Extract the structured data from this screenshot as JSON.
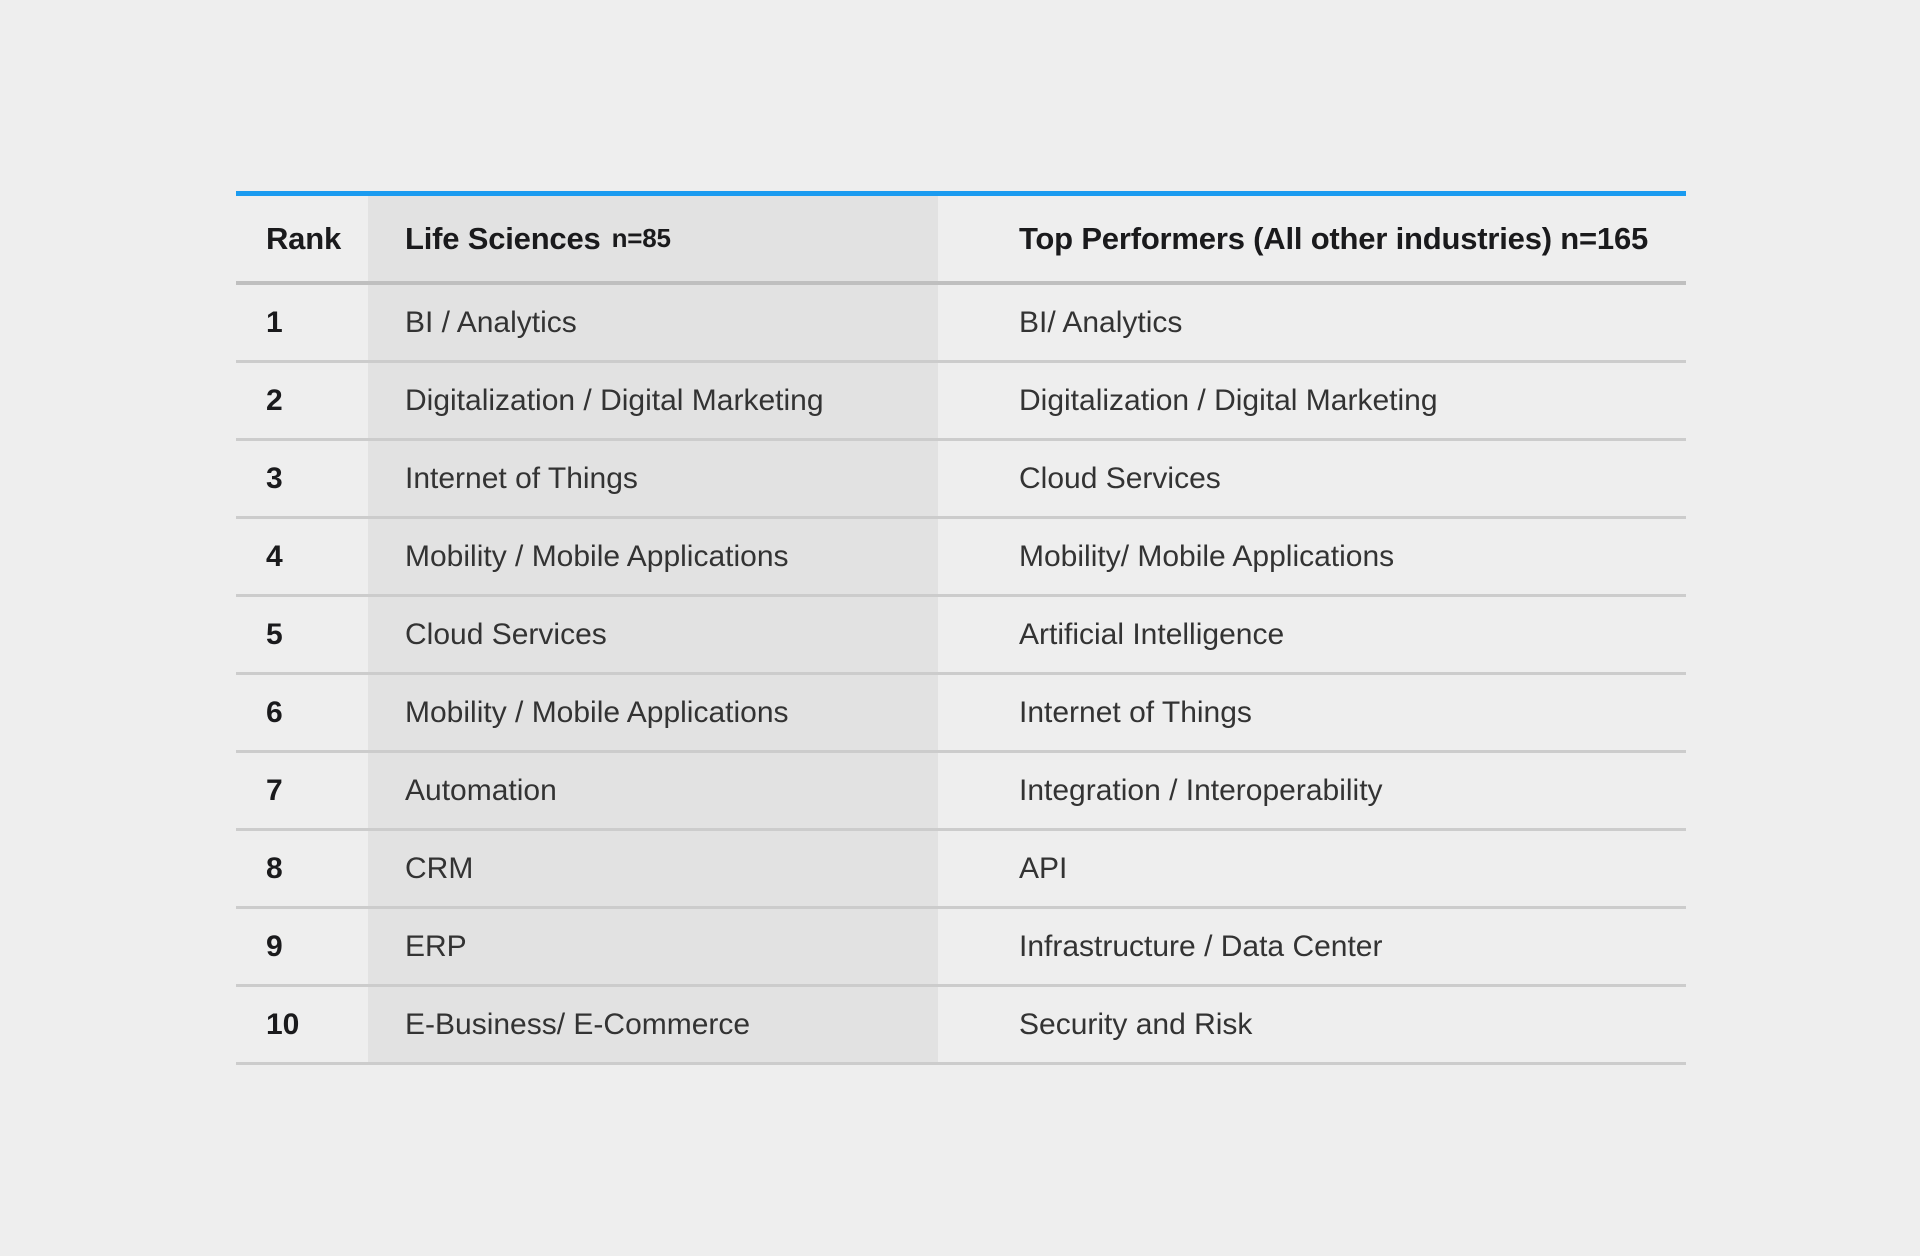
{
  "colors": {
    "page_background": "#eeeeee",
    "accent_bar": "#1a9bf0",
    "column_shade": "#e2e2e2",
    "row_divider": "#cccccc",
    "header_divider": "#bfbfbf",
    "header_text": "#1a1a1c",
    "body_text": "#333333"
  },
  "table": {
    "header": {
      "rank": "Rank",
      "life_sciences": "Life Sciences",
      "life_sciences_n": "n=85",
      "top_performers": "Top Performers (All other industries) n=165"
    },
    "rows": [
      {
        "rank": "1",
        "life_sciences": "BI / Analytics",
        "top_performers": "BI/ Analytics"
      },
      {
        "rank": "2",
        "life_sciences": "Digitalization / Digital Marketing",
        "top_performers": "Digitalization / Digital Marketing"
      },
      {
        "rank": "3",
        "life_sciences": "Internet of Things",
        "top_performers": "Cloud Services"
      },
      {
        "rank": "4",
        "life_sciences": "Mobility / Mobile Applications",
        "top_performers": "Mobility/ Mobile Applications"
      },
      {
        "rank": "5",
        "life_sciences": "Cloud Services",
        "top_performers": "Artificial Intelligence"
      },
      {
        "rank": "6",
        "life_sciences": "Mobility / Mobile Applications",
        "top_performers": "Internet of Things"
      },
      {
        "rank": "7",
        "life_sciences": "Automation",
        "top_performers": "Integration / Interoperability"
      },
      {
        "rank": "8",
        "life_sciences": "CRM",
        "top_performers": "API"
      },
      {
        "rank": "9",
        "life_sciences": "ERP",
        "top_performers": "Infrastructure / Data Center"
      },
      {
        "rank": "10",
        "life_sciences": "E-Business/ E-Commerce",
        "top_performers": "Security and Risk"
      }
    ]
  },
  "chart_data": {
    "type": "table",
    "title": "",
    "columns": [
      "Rank",
      "Life Sciences n=85",
      "Top Performers (All other industries) n=165"
    ],
    "rows": [
      [
        "1",
        "BI / Analytics",
        "BI/ Analytics"
      ],
      [
        "2",
        "Digitalization / Digital Marketing",
        "Digitalization / Digital Marketing"
      ],
      [
        "3",
        "Internet of Things",
        "Cloud Services"
      ],
      [
        "4",
        "Mobility / Mobile Applications",
        "Mobility/ Mobile Applications"
      ],
      [
        "5",
        "Cloud Services",
        "Artificial Intelligence"
      ],
      [
        "6",
        "Mobility / Mobile Applications",
        "Internet of Things"
      ],
      [
        "7",
        "Automation",
        "Integration / Interoperability"
      ],
      [
        "8",
        "CRM",
        "API"
      ],
      [
        "9",
        "ERP",
        "Infrastructure / Data Center"
      ],
      [
        "10",
        "E-Business/ E-Commerce",
        "Security and Risk"
      ]
    ]
  }
}
